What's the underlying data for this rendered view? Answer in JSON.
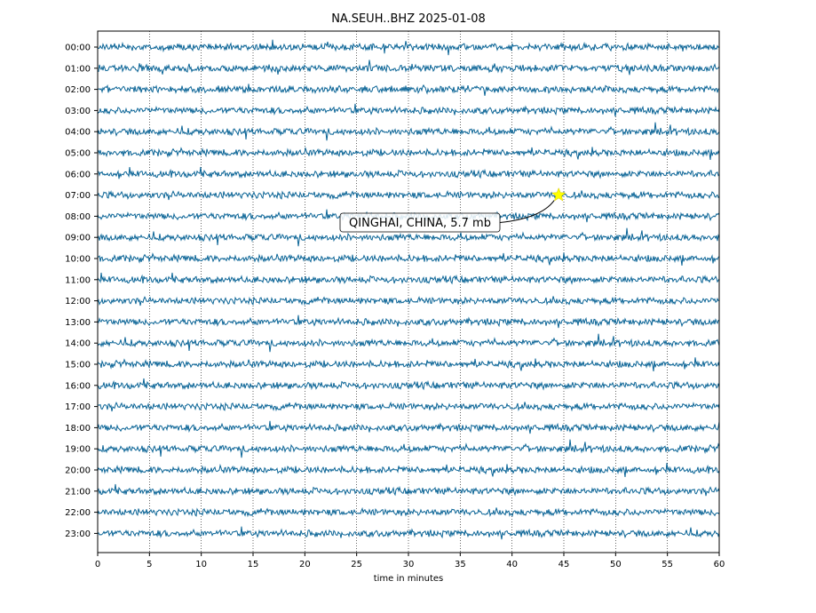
{
  "chart_data": {
    "type": "line",
    "title": "NA.SEUH..BHZ 2025-01-08",
    "xlabel": "time in minutes",
    "ylabel": "",
    "xlim": [
      0,
      60
    ],
    "x_ticks": [
      0,
      5,
      10,
      15,
      20,
      25,
      30,
      35,
      40,
      45,
      50,
      55,
      60
    ],
    "row_labels": [
      "00:00",
      "01:00",
      "02:00",
      "03:00",
      "04:00",
      "05:00",
      "06:00",
      "07:00",
      "08:00",
      "09:00",
      "10:00",
      "11:00",
      "12:00",
      "13:00",
      "14:00",
      "15:00",
      "16:00",
      "17:00",
      "18:00",
      "19:00",
      "20:00",
      "21:00",
      "22:00",
      "23:00"
    ],
    "grid": {
      "vertical": true,
      "style": "dotted"
    },
    "trace_color": "#0a6496",
    "event": {
      "row": "07:00",
      "minute": 44.5,
      "marker": "star",
      "marker_color": "#ffff00",
      "label": "QINGHAI, CHINA, 5.7 mb"
    }
  }
}
